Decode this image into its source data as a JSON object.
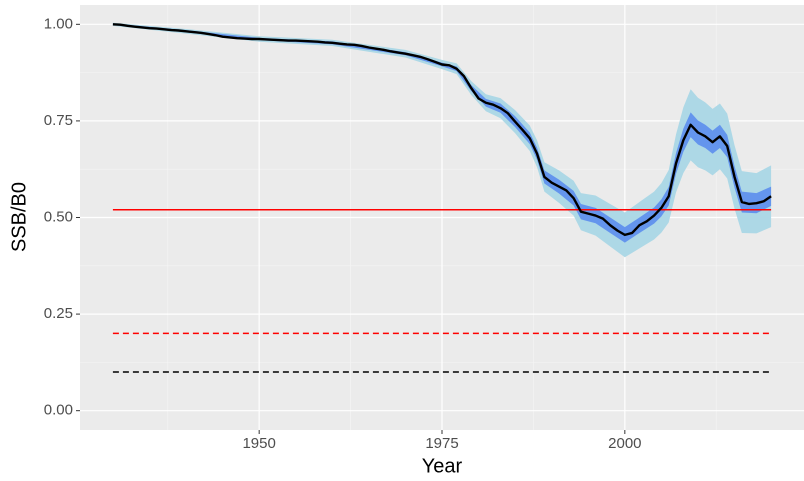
{
  "chart_data": {
    "type": "band-line",
    "x_label": "Year",
    "y_label": "SSB/B0",
    "xlim": [
      1925.5,
      2024.5
    ],
    "xticks": [
      1950,
      1975,
      2000
    ],
    "x_minor_grid": [
      1937.5,
      1962.5,
      1987.5,
      2012.5
    ],
    "ylim": [
      -0.05,
      1.05
    ],
    "yticks": [
      {
        "value": 0,
        "label": "0.00"
      },
      {
        "value": 0.25,
        "label": "0.25"
      },
      {
        "value": 0.5,
        "label": "0.50"
      },
      {
        "value": 0.75,
        "label": "0.75"
      },
      {
        "value": 1,
        "label": "1.00"
      }
    ],
    "y_minor_grid": [
      0.125,
      0.375,
      0.625,
      0.875
    ],
    "grid": true,
    "bands": [
      {
        "color": "#add8e6",
        "x": [
          1930,
          1940,
          1950,
          1960,
          1970,
          1975,
          1977,
          1979,
          1981,
          1983,
          1985,
          1987,
          1988,
          1989,
          1991,
          1993,
          1994,
          1996,
          1998,
          2000,
          2002,
          2004,
          2005,
          2006,
          2007,
          2008,
          2009,
          2010,
          2011,
          2012,
          2013,
          2014,
          2015,
          2016,
          2018,
          2020
        ],
        "lower": [
          0.996,
          0.976,
          0.955,
          0.944,
          0.914,
          0.884,
          0.871,
          0.817,
          0.775,
          0.757,
          0.718,
          0.672,
          0.63,
          0.567,
          0.538,
          0.505,
          0.467,
          0.453,
          0.425,
          0.397,
          0.42,
          0.443,
          0.461,
          0.487,
          0.565,
          0.615,
          0.648,
          0.63,
          0.622,
          0.609,
          0.625,
          0.601,
          0.523,
          0.46,
          0.459,
          0.475
        ],
        "upper": [
          1.004,
          0.988,
          0.969,
          0.96,
          0.934,
          0.908,
          0.899,
          0.853,
          0.819,
          0.809,
          0.778,
          0.738,
          0.7,
          0.643,
          0.622,
          0.595,
          0.563,
          0.557,
          0.535,
          0.513,
          0.54,
          0.567,
          0.589,
          0.623,
          0.715,
          0.785,
          0.832,
          0.81,
          0.798,
          0.781,
          0.795,
          0.769,
          0.687,
          0.62,
          0.615,
          0.635
        ]
      },
      {
        "color": "#6495ed",
        "x": [
          1930,
          1940,
          1950,
          1960,
          1970,
          1975,
          1977,
          1979,
          1981,
          1983,
          1985,
          1987,
          1988,
          1989,
          1991,
          1993,
          1994,
          1996,
          1998,
          2000,
          2002,
          2004,
          2005,
          2006,
          2007,
          2008,
          2009,
          2010,
          2011,
          2012,
          2013,
          2014,
          2015,
          2016,
          2018,
          2020
        ],
        "lower": [
          0.998,
          0.979,
          0.959,
          0.948,
          0.92,
          0.891,
          0.879,
          0.827,
          0.787,
          0.771,
          0.734,
          0.69,
          0.649,
          0.588,
          0.562,
          0.531,
          0.495,
          0.485,
          0.46,
          0.435,
          0.46,
          0.484,
          0.503,
          0.531,
          0.613,
          0.67,
          0.708,
          0.689,
          0.68,
          0.665,
          0.68,
          0.656,
          0.577,
          0.513,
          0.511,
          0.53
        ],
        "upper": [
          1.002,
          0.985,
          0.965,
          0.956,
          0.928,
          0.901,
          0.891,
          0.843,
          0.807,
          0.795,
          0.762,
          0.72,
          0.681,
          0.622,
          0.598,
          0.569,
          0.535,
          0.525,
          0.5,
          0.475,
          0.5,
          0.526,
          0.547,
          0.579,
          0.667,
          0.73,
          0.772,
          0.751,
          0.74,
          0.725,
          0.74,
          0.714,
          0.633,
          0.567,
          0.563,
          0.58
        ]
      }
    ],
    "line": {
      "color": "#000000",
      "x": [
        1930,
        1931,
        1932,
        1933,
        1934,
        1935,
        1936,
        1937,
        1938,
        1939,
        1940,
        1941,
        1942,
        1943,
        1944,
        1945,
        1946,
        1947,
        1948,
        1949,
        1950,
        1951,
        1952,
        1953,
        1954,
        1955,
        1956,
        1957,
        1958,
        1959,
        1960,
        1961,
        1962,
        1963,
        1964,
        1965,
        1966,
        1967,
        1968,
        1969,
        1970,
        1971,
        1972,
        1973,
        1974,
        1975,
        1976,
        1977,
        1978,
        1979,
        1980,
        1981,
        1982,
        1983,
        1984,
        1985,
        1986,
        1987,
        1988,
        1989,
        1990,
        1991,
        1992,
        1993,
        1994,
        1995,
        1996,
        1997,
        1998,
        1999,
        2000,
        2001,
        2002,
        2003,
        2004,
        2005,
        2006,
        2007,
        2008,
        2009,
        2010,
        2011,
        2012,
        2013,
        2014,
        2015,
        2016,
        2017,
        2018,
        2019,
        2020
      ],
      "values": [
        1.0,
        0.999,
        0.996,
        0.994,
        0.992,
        0.99,
        0.989,
        0.987,
        0.985,
        0.984,
        0.982,
        0.98,
        0.978,
        0.975,
        0.972,
        0.968,
        0.966,
        0.964,
        0.963,
        0.962,
        0.962,
        0.961,
        0.96,
        0.959,
        0.958,
        0.958,
        0.957,
        0.956,
        0.955,
        0.953,
        0.952,
        0.95,
        0.948,
        0.947,
        0.944,
        0.94,
        0.937,
        0.934,
        0.93,
        0.927,
        0.924,
        0.92,
        0.916,
        0.91,
        0.903,
        0.896,
        0.894,
        0.885,
        0.866,
        0.835,
        0.808,
        0.797,
        0.792,
        0.783,
        0.77,
        0.748,
        0.727,
        0.705,
        0.665,
        0.605,
        0.59,
        0.58,
        0.57,
        0.55,
        0.515,
        0.51,
        0.505,
        0.497,
        0.48,
        0.466,
        0.455,
        0.46,
        0.48,
        0.49,
        0.505,
        0.525,
        0.555,
        0.64,
        0.7,
        0.74,
        0.72,
        0.71,
        0.695,
        0.71,
        0.685,
        0.605,
        0.54,
        0.535,
        0.537,
        0.542,
        0.555
      ]
    },
    "hlines": [
      {
        "value": 0.52,
        "color": "#ff0000",
        "dashed": false,
        "from": 1930,
        "to": 2020
      },
      {
        "value": 0.2,
        "color": "#ff0000",
        "dashed": true,
        "from": 1930,
        "to": 2020
      },
      {
        "value": 0.1,
        "color": "#000000",
        "dashed": true,
        "from": 1930,
        "to": 2020
      }
    ]
  }
}
